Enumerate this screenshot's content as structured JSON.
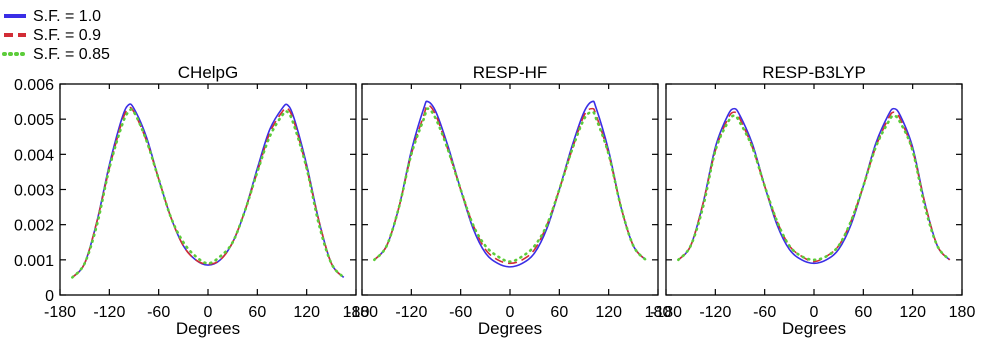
{
  "legend": {
    "position": "top-left",
    "entries": [
      {
        "label": "S.F. = 1.0",
        "color": "#3a2ee6",
        "style": "solid"
      },
      {
        "label": "S.F. = 0.9",
        "color": "#d22d36",
        "style": "dashed"
      },
      {
        "label": "S.F. = 0.85",
        "color": "#5ccc3a",
        "style": "dotted"
      }
    ]
  },
  "chart_data": [
    {
      "type": "line",
      "title": "CHelpG",
      "xlabel": "Degrees",
      "ylabel": "",
      "xlim": [
        -180,
        180
      ],
      "ylim": [
        0,
        0.006
      ],
      "x_ticks": [
        "-180",
        "-120",
        "-60",
        "0",
        "60",
        "120",
        "180"
      ],
      "y_ticks": [
        "0",
        "0.001",
        "0.002",
        "0.003",
        "0.004",
        "0.005",
        "0.006"
      ],
      "grid": false,
      "x": [
        -165,
        -150,
        -135,
        -120,
        -105,
        -97,
        -90,
        -75,
        -60,
        -45,
        -30,
        -15,
        0,
        15,
        30,
        45,
        60,
        75,
        90,
        97,
        105,
        120,
        135,
        150,
        165
      ],
      "series": [
        {
          "name": "S.F. = 1.0",
          "color": "#3a2ee6",
          "style": "solid",
          "values": [
            0.0005,
            0.0009,
            0.0021,
            0.0037,
            0.005,
            0.0054,
            0.0053,
            0.0045,
            0.0033,
            0.0022,
            0.0014,
            0.001,
            0.00085,
            0.001,
            0.0015,
            0.0024,
            0.0036,
            0.0047,
            0.0053,
            0.0054,
            0.005,
            0.0037,
            0.0021,
            0.0009,
            0.0005
          ]
        },
        {
          "name": "S.F. = 0.9",
          "color": "#d22d36",
          "style": "dashed",
          "values": [
            0.0005,
            0.0009,
            0.0021,
            0.0036,
            0.0049,
            0.0053,
            0.0052,
            0.0044,
            0.0033,
            0.0022,
            0.0014,
            0.001,
            0.00088,
            0.001,
            0.0015,
            0.0024,
            0.0035,
            0.0046,
            0.0052,
            0.0053,
            0.0049,
            0.0036,
            0.0021,
            0.0009,
            0.0005
          ]
        },
        {
          "name": "S.F. = 0.85",
          "color": "#5ccc3a",
          "style": "dotted",
          "values": [
            0.0005,
            0.0009,
            0.002,
            0.0036,
            0.0048,
            0.0052,
            0.0052,
            0.0044,
            0.0033,
            0.0022,
            0.0015,
            0.0011,
            0.0009,
            0.0011,
            0.0015,
            0.0024,
            0.0035,
            0.0045,
            0.0051,
            0.0052,
            0.0048,
            0.0036,
            0.002,
            0.0009,
            0.0005
          ]
        }
      ]
    },
    {
      "type": "line",
      "title": "RESP-HF",
      "xlabel": "Degrees",
      "ylabel": "",
      "xlim": [
        -180,
        180
      ],
      "ylim": [
        0,
        0.006
      ],
      "x_ticks": [
        "-180",
        "-120",
        "-60",
        "0",
        "60",
        "120",
        "180"
      ],
      "y_ticks": [
        "0",
        "0.001",
        "0.002",
        "0.003",
        "0.004",
        "0.005",
        "0.006"
      ],
      "grid": false,
      "x": [
        -165,
        -150,
        -135,
        -120,
        -105,
        -100,
        -90,
        -75,
        -60,
        -45,
        -30,
        -15,
        0,
        15,
        30,
        45,
        60,
        75,
        90,
        100,
        105,
        120,
        135,
        150,
        165
      ],
      "series": [
        {
          "name": "S.F. = 1.0",
          "color": "#3a2ee6",
          "style": "solid",
          "values": [
            0.001,
            0.0014,
            0.0025,
            0.0041,
            0.0053,
            0.0055,
            0.0052,
            0.0042,
            0.003,
            0.0019,
            0.0012,
            0.0009,
            0.0008,
            0.0009,
            0.0012,
            0.0019,
            0.003,
            0.0042,
            0.0052,
            0.0055,
            0.0053,
            0.0041,
            0.0025,
            0.0014,
            0.001
          ]
        },
        {
          "name": "S.F. = 0.9",
          "color": "#d22d36",
          "style": "dashed",
          "values": [
            0.001,
            0.0014,
            0.0025,
            0.004,
            0.0051,
            0.0054,
            0.0051,
            0.0041,
            0.003,
            0.002,
            0.0013,
            0.001,
            0.0009,
            0.001,
            0.0013,
            0.002,
            0.003,
            0.0041,
            0.0051,
            0.0053,
            0.0051,
            0.004,
            0.0025,
            0.0014,
            0.001
          ]
        },
        {
          "name": "S.F. = 0.85",
          "color": "#5ccc3a",
          "style": "dotted",
          "values": [
            0.001,
            0.0014,
            0.0025,
            0.004,
            0.005,
            0.0053,
            0.005,
            0.0041,
            0.003,
            0.002,
            0.0014,
            0.0011,
            0.00095,
            0.0011,
            0.0014,
            0.002,
            0.003,
            0.0041,
            0.005,
            0.0052,
            0.005,
            0.004,
            0.0025,
            0.0014,
            0.001
          ]
        }
      ]
    },
    {
      "type": "line",
      "title": "RESP-B3LYP",
      "xlabel": "Degrees",
      "ylabel": "",
      "xlim": [
        -180,
        180
      ],
      "ylim": [
        0,
        0.006
      ],
      "x_ticks": [
        "-180",
        "-120",
        "-60",
        "0",
        "60",
        "120",
        "180"
      ],
      "y_ticks": [
        "0",
        "0.001",
        "0.002",
        "0.003",
        "0.004",
        "0.005",
        "0.006"
      ],
      "grid": false,
      "x": [
        -165,
        -150,
        -135,
        -120,
        -105,
        -97,
        -90,
        -75,
        -60,
        -45,
        -30,
        -15,
        0,
        15,
        30,
        45,
        60,
        75,
        90,
        97,
        105,
        120,
        135,
        150,
        165
      ],
      "series": [
        {
          "name": "S.F. = 1.0",
          "color": "#3a2ee6",
          "style": "solid",
          "values": [
            0.001,
            0.0014,
            0.0026,
            0.0042,
            0.0051,
            0.0053,
            0.0051,
            0.0043,
            0.0031,
            0.002,
            0.0013,
            0.001,
            0.0009,
            0.001,
            0.0013,
            0.002,
            0.0031,
            0.0043,
            0.0051,
            0.0053,
            0.0051,
            0.0042,
            0.0026,
            0.0014,
            0.001
          ]
        },
        {
          "name": "S.F. = 0.9",
          "color": "#d22d36",
          "style": "dashed",
          "values": [
            0.001,
            0.0014,
            0.0026,
            0.0041,
            0.005,
            0.0052,
            0.005,
            0.0042,
            0.0031,
            0.0021,
            0.0014,
            0.0011,
            0.00095,
            0.0011,
            0.0014,
            0.0021,
            0.0031,
            0.0042,
            0.005,
            0.0052,
            0.005,
            0.0041,
            0.0026,
            0.0014,
            0.001
          ]
        },
        {
          "name": "S.F. = 0.85",
          "color": "#5ccc3a",
          "style": "dotted",
          "values": [
            0.001,
            0.0014,
            0.0025,
            0.0041,
            0.0049,
            0.0051,
            0.0049,
            0.0042,
            0.0031,
            0.0021,
            0.0014,
            0.0011,
            0.001,
            0.0011,
            0.0014,
            0.0021,
            0.0031,
            0.0042,
            0.0049,
            0.0051,
            0.0049,
            0.0041,
            0.0025,
            0.0014,
            0.001
          ]
        }
      ]
    }
  ]
}
